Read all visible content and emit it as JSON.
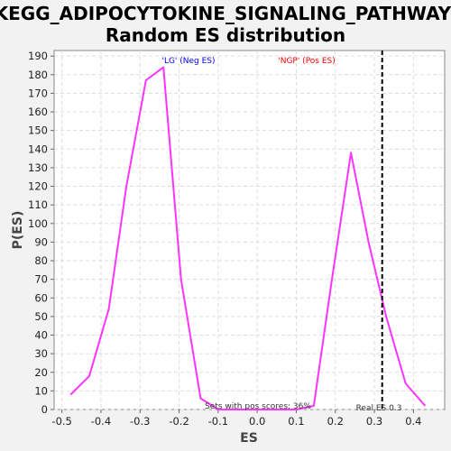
{
  "chart_data": {
    "type": "line",
    "title_line1": "KEGG_ADIPOCYTOKINE_SIGNALING_PATHWAY:",
    "title_line2": "Random ES distribution",
    "xlabel": "ES",
    "ylabel": "P(ES)",
    "xlim": [
      -0.52,
      0.48
    ],
    "ylim": [
      0,
      193
    ],
    "x_ticks": [
      -0.5,
      -0.4,
      -0.3,
      -0.2,
      -0.1,
      0.0,
      0.1,
      0.2,
      0.3,
      0.4
    ],
    "x_tick_labels": [
      "-0.5",
      "-0.4",
      "-0.3",
      "-0.2",
      "-0.1",
      "0.0",
      "0.1",
      "0.2",
      "0.3",
      "0.4"
    ],
    "y_ticks": [
      0,
      10,
      20,
      30,
      40,
      50,
      60,
      70,
      80,
      90,
      100,
      110,
      120,
      130,
      140,
      150,
      160,
      170,
      180,
      190
    ],
    "grid": true,
    "series": [
      {
        "color": "#ff33ff",
        "x": [
          -0.478,
          -0.43,
          -0.38,
          -0.335,
          -0.285,
          -0.24,
          -0.195,
          -0.145,
          -0.1,
          -0.05,
          0.0,
          0.05,
          0.1,
          0.145,
          0.19,
          0.24,
          0.285,
          0.33,
          0.38,
          0.43
        ],
        "y": [
          8,
          18,
          54,
          120,
          177,
          184,
          70,
          6,
          0,
          0,
          0,
          0,
          0,
          2,
          68,
          138,
          90,
          50,
          14,
          2
        ]
      }
    ],
    "real_es_line": {
      "x": 0.32,
      "color": "#000000",
      "style": "dashed"
    },
    "annotations": {
      "neg_label": "'LG' (Neg ES)",
      "neg_color": "#0000ee",
      "pos_label": "'NGP' (Pos ES)",
      "pos_color": "#ff0000",
      "pos_scores": "Sets with pos scores: 36%",
      "real_es": "Real ES 0.3"
    },
    "colors": {
      "background": "#f2f2f2",
      "plot_background": "#ffffff",
      "grid": "#dddddd"
    }
  }
}
